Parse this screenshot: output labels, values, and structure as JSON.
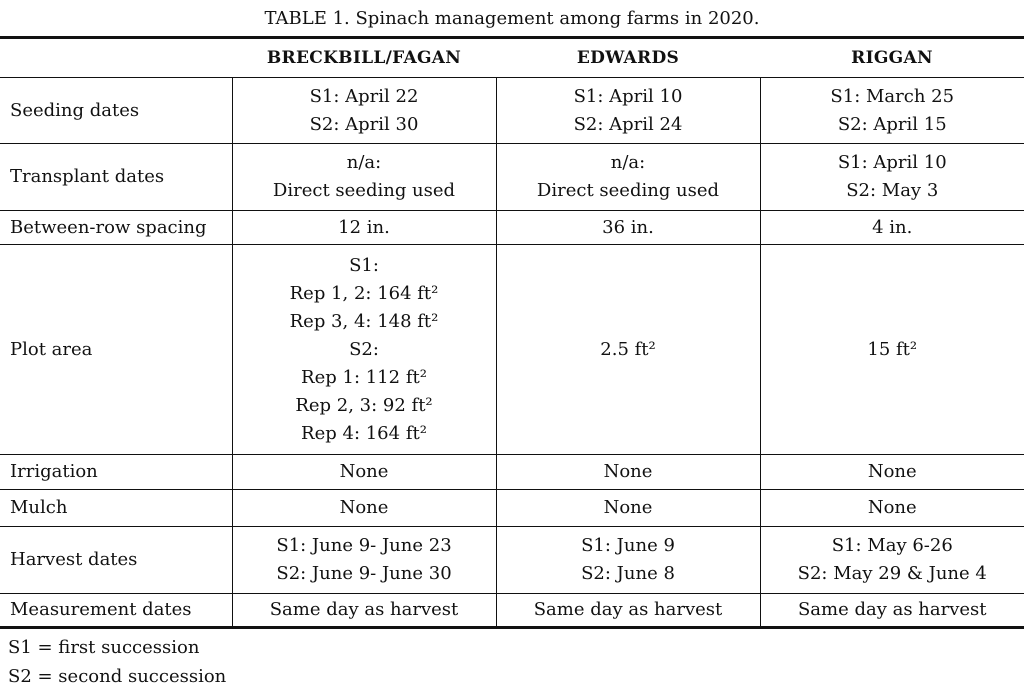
{
  "title": "TABLE 1. Spinach management among farms in 2020.",
  "table": {
    "columns": [
      "BRECKBILL/FAGAN",
      "EDWARDS",
      "RIGGAN"
    ],
    "rows": [
      {
        "label": "Seeding dates",
        "cells": [
          [
            "S1: April 22",
            "S2: April 30"
          ],
          [
            "S1: April 10",
            "S2: April 24"
          ],
          [
            "S1: March 25",
            "S2: April 15"
          ]
        ]
      },
      {
        "label": "Transplant dates",
        "cells": [
          [
            "n/a:",
            "Direct seeding used"
          ],
          [
            "n/a:",
            "Direct seeding used"
          ],
          [
            "S1: April 10",
            "S2: May 3"
          ]
        ]
      },
      {
        "label": "Between-row spacing",
        "cells": [
          [
            "12 in."
          ],
          [
            "36 in."
          ],
          [
            "4 in."
          ]
        ]
      },
      {
        "label": "Plot area",
        "cells": [
          [
            "S1:",
            "Rep 1, 2: 164 ft²",
            "Rep 3, 4: 148 ft²",
            "S2:",
            "Rep 1: 112 ft²",
            "Rep 2, 3: 92 ft²",
            "Rep 4: 164 ft²"
          ],
          [
            "2.5 ft²"
          ],
          [
            "15 ft²"
          ]
        ]
      },
      {
        "label": "Irrigation",
        "cells": [
          [
            "None"
          ],
          [
            "None"
          ],
          [
            "None"
          ]
        ]
      },
      {
        "label": "Mulch",
        "cells": [
          [
            "None"
          ],
          [
            "None"
          ],
          [
            "None"
          ]
        ]
      },
      {
        "label": "Harvest dates",
        "cells": [
          [
            "S1: June 9- June 23",
            "S2: June 9- June 30"
          ],
          [
            "S1: June 9",
            "S2: June 8"
          ],
          [
            "S1: May 6-26",
            "S2: May 29 & June 4"
          ]
        ]
      },
      {
        "label": "Measurement dates",
        "cells": [
          [
            "Same day as harvest"
          ],
          [
            "Same day as harvest"
          ],
          [
            "Same day as harvest"
          ]
        ]
      }
    ]
  },
  "footnotes": [
    "S1 = first succession",
    "S2 = second succession"
  ]
}
